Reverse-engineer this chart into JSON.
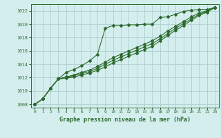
{
  "xlabel": "Graphe pression niveau de la mer (hPa)",
  "x": [
    0,
    1,
    2,
    3,
    4,
    5,
    6,
    7,
    8,
    9,
    10,
    11,
    12,
    13,
    14,
    15,
    16,
    17,
    18,
    19,
    20,
    21,
    22,
    23
  ],
  "line1": [
    1008.0,
    1008.8,
    1010.4,
    1011.8,
    1012.8,
    1013.2,
    1013.8,
    1014.5,
    1015.5,
    1019.4,
    1019.8,
    1019.8,
    1019.9,
    1019.9,
    1020.0,
    1020.0,
    1021.0,
    1021.1,
    1021.5,
    1021.9,
    1022.1,
    1022.2,
    1022.2,
    1022.5
  ],
  "line2": [
    1008.0,
    1008.8,
    1010.4,
    1011.8,
    1012.1,
    1012.4,
    1012.8,
    1013.1,
    1013.7,
    1014.3,
    1015.0,
    1015.5,
    1016.0,
    1016.5,
    1017.0,
    1017.5,
    1018.2,
    1019.0,
    1019.7,
    1020.4,
    1021.1,
    1021.7,
    1022.0,
    1022.5
  ],
  "line3": [
    1008.0,
    1008.8,
    1010.4,
    1011.8,
    1012.0,
    1012.3,
    1012.6,
    1012.9,
    1013.4,
    1014.0,
    1014.6,
    1015.1,
    1015.6,
    1016.1,
    1016.6,
    1017.1,
    1017.8,
    1018.6,
    1019.4,
    1020.1,
    1020.8,
    1021.5,
    1021.9,
    1022.5
  ],
  "line4": [
    1008.0,
    1008.8,
    1010.4,
    1011.8,
    1011.9,
    1012.1,
    1012.4,
    1012.7,
    1013.1,
    1013.6,
    1014.2,
    1014.7,
    1015.2,
    1015.7,
    1016.2,
    1016.7,
    1017.5,
    1018.3,
    1019.1,
    1019.8,
    1020.6,
    1021.3,
    1021.8,
    1022.5
  ],
  "line_color": "#2d6a2d",
  "bg_color": "#d4eeee",
  "grid_color": "#aed0d0",
  "ylim": [
    1007.5,
    1023.0
  ],
  "yticks": [
    1008,
    1010,
    1012,
    1014,
    1016,
    1018,
    1020,
    1022
  ],
  "xticks": [
    0,
    1,
    2,
    3,
    4,
    5,
    6,
    7,
    8,
    9,
    10,
    11,
    12,
    13,
    14,
    15,
    16,
    17,
    18,
    19,
    20,
    21,
    22,
    23
  ]
}
